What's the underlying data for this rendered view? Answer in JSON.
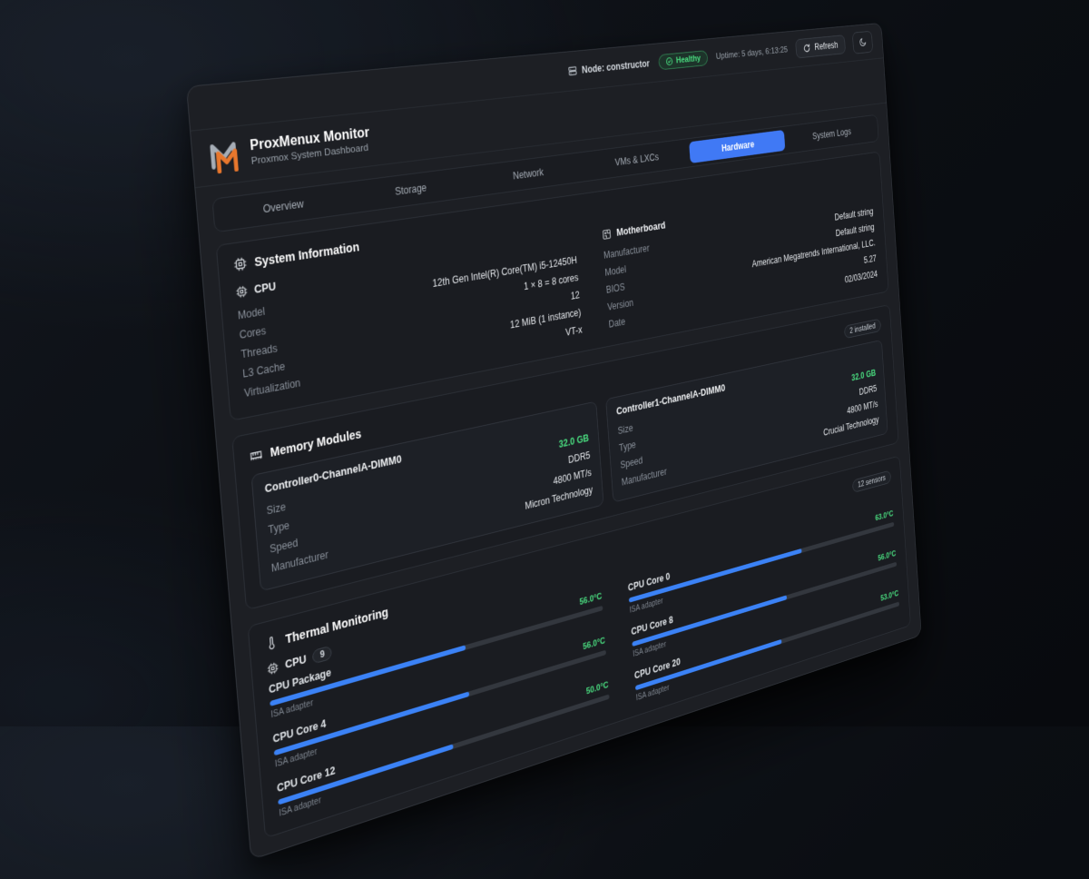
{
  "header": {
    "node_label": "Node: constructor",
    "health_badge": "Healthy",
    "uptime": "Uptime: 5 days, 6:13:25",
    "refresh_label": "Refresh"
  },
  "brand": {
    "title": "ProxMenux Monitor",
    "subtitle": "Proxmox System Dashboard"
  },
  "tabs": [
    {
      "label": "Overview"
    },
    {
      "label": "Storage"
    },
    {
      "label": "Network"
    },
    {
      "label": "VMs & LXCs"
    },
    {
      "label": "Hardware",
      "active": true
    },
    {
      "label": "System Logs"
    }
  ],
  "colors": {
    "accent_blue": "#4079f5",
    "status_green": "#4ade80",
    "logo_orange": "#e8772d"
  },
  "system_info": {
    "title": "System Information",
    "cpu": {
      "title": "CPU",
      "rows": [
        {
          "label": "Model",
          "value": "12th Gen Intel(R) Core(TM) i5-12450H"
        },
        {
          "label": "Cores",
          "value": "1 × 8 = 8 cores"
        },
        {
          "label": "Threads",
          "value": "12"
        },
        {
          "label": "L3 Cache",
          "value": "12 MiB (1 instance)"
        },
        {
          "label": "Virtualization",
          "value": "VT-x"
        }
      ]
    },
    "motherboard": {
      "title": "Motherboard",
      "rows": [
        {
          "label": "Manufacturer",
          "value": "Default string"
        },
        {
          "label": "Model",
          "value": "Default string"
        },
        {
          "label": "BIOS",
          "value": "American Megatrends International, LLC."
        },
        {
          "label": "Version",
          "value": "5.27"
        },
        {
          "label": "Date",
          "value": "02/03/2024"
        }
      ]
    }
  },
  "memory": {
    "title": "Memory Modules",
    "badge": "2 installed",
    "field_labels": [
      "Size",
      "Type",
      "Speed",
      "Manufacturer"
    ],
    "modules": [
      {
        "name": "Controller0-ChannelA-DIMM0",
        "size": "32.0 GB",
        "type": "DDR5",
        "speed": "4800 MT/s",
        "manufacturer": "Micron Technology"
      },
      {
        "name": "Controller1-ChannelA-DIMM0",
        "size": "32.0 GB",
        "type": "DDR5",
        "speed": "4800 MT/s",
        "manufacturer": "Crucial Technology"
      }
    ]
  },
  "thermal": {
    "title": "Thermal Monitoring",
    "badge": "12 sensors",
    "group_name": "CPU",
    "group_count": "9",
    "adapter": "ISA adapter",
    "sensors": [
      {
        "name": "CPU Package",
        "temp": "56.0°C",
        "percent": 56
      },
      {
        "name": "CPU Core 0",
        "temp": "63.0°C",
        "percent": 63
      },
      {
        "name": "CPU Core 4",
        "temp": "56.0°C",
        "percent": 56
      },
      {
        "name": "CPU Core 8",
        "temp": "56.0°C",
        "percent": 56
      },
      {
        "name": "CPU Core 12",
        "temp": "50.0°C",
        "percent": 50
      },
      {
        "name": "CPU Core 20",
        "temp": "53.0°C",
        "percent": 53
      }
    ]
  }
}
